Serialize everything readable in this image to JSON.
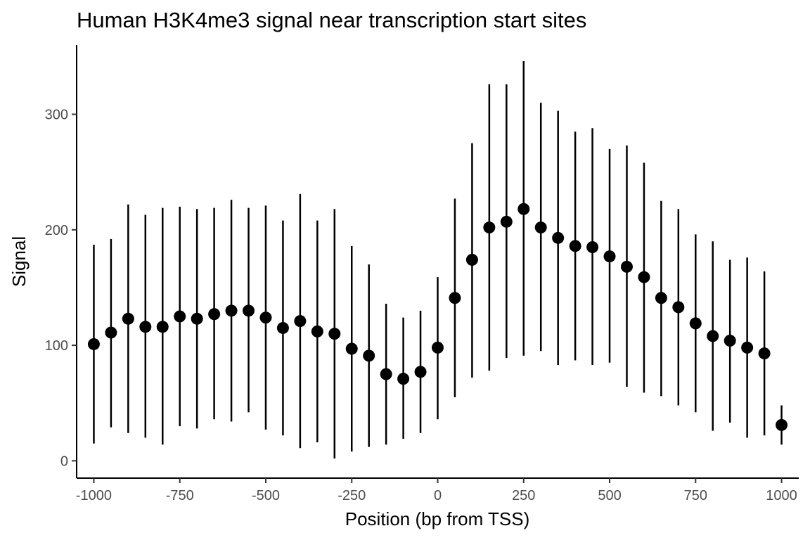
{
  "chart_data": {
    "type": "scatter",
    "title": "Human H3K4me3 signal near transcription start sites",
    "xlabel": "Position (bp from TSS)",
    "ylabel": "Signal",
    "xlim": [
      -1050,
      1050
    ],
    "ylim": [
      -15,
      360
    ],
    "xticks": [
      -1000,
      -750,
      -500,
      -250,
      0,
      250,
      500,
      750,
      1000
    ],
    "xtick_labels": [
      "-1000",
      "-750",
      "-500",
      "-250",
      "0",
      "250",
      "500",
      "750",
      "1000"
    ],
    "yticks": [
      0,
      100,
      200,
      300
    ],
    "ytick_labels": [
      "0",
      "100",
      "200",
      "300"
    ],
    "grid": false,
    "legend": "none",
    "marker_color": "#000000",
    "error_bars": true,
    "points": [
      {
        "x": -1000,
        "y": 101,
        "ymin": 15,
        "ymax": 187
      },
      {
        "x": -950,
        "y": 111,
        "ymin": 29,
        "ymax": 192
      },
      {
        "x": -900,
        "y": 123,
        "ymin": 24,
        "ymax": 222
      },
      {
        "x": -850,
        "y": 116,
        "ymin": 20,
        "ymax": 213
      },
      {
        "x": -800,
        "y": 116,
        "ymin": 14,
        "ymax": 219
      },
      {
        "x": -750,
        "y": 125,
        "ymin": 30,
        "ymax": 220
      },
      {
        "x": -700,
        "y": 123,
        "ymin": 28,
        "ymax": 218
      },
      {
        "x": -650,
        "y": 127,
        "ymin": 36,
        "ymax": 219
      },
      {
        "x": -600,
        "y": 130,
        "ymin": 34,
        "ymax": 226
      },
      {
        "x": -550,
        "y": 130,
        "ymin": 42,
        "ymax": 219
      },
      {
        "x": -500,
        "y": 124,
        "ymin": 27,
        "ymax": 221
      },
      {
        "x": -450,
        "y": 115,
        "ymin": 22,
        "ymax": 208
      },
      {
        "x": -400,
        "y": 121,
        "ymin": 11,
        "ymax": 231
      },
      {
        "x": -350,
        "y": 112,
        "ymin": 16,
        "ymax": 208
      },
      {
        "x": -300,
        "y": 110,
        "ymin": 2,
        "ymax": 218
      },
      {
        "x": -250,
        "y": 97,
        "ymin": 8,
        "ymax": 186
      },
      {
        "x": -200,
        "y": 91,
        "ymin": 12,
        "ymax": 170
      },
      {
        "x": -150,
        "y": 75,
        "ymin": 14,
        "ymax": 136
      },
      {
        "x": -100,
        "y": 71,
        "ymin": 19,
        "ymax": 124
      },
      {
        "x": -50,
        "y": 77,
        "ymin": 24,
        "ymax": 130
      },
      {
        "x": 0,
        "y": 98,
        "ymin": 36,
        "ymax": 159
      },
      {
        "x": 50,
        "y": 141,
        "ymin": 55,
        "ymax": 227
      },
      {
        "x": 100,
        "y": 174,
        "ymin": 72,
        "ymax": 275
      },
      {
        "x": 150,
        "y": 202,
        "ymin": 78,
        "ymax": 326
      },
      {
        "x": 200,
        "y": 207,
        "ymin": 89,
        "ymax": 326
      },
      {
        "x": 250,
        "y": 218,
        "ymin": 91,
        "ymax": 346
      },
      {
        "x": 300,
        "y": 202,
        "ymin": 95,
        "ymax": 310
      },
      {
        "x": 350,
        "y": 193,
        "ymin": 83,
        "ymax": 303
      },
      {
        "x": 400,
        "y": 186,
        "ymin": 87,
        "ymax": 285
      },
      {
        "x": 450,
        "y": 185,
        "ymin": 83,
        "ymax": 288
      },
      {
        "x": 500,
        "y": 177,
        "ymin": 85,
        "ymax": 270
      },
      {
        "x": 550,
        "y": 168,
        "ymin": 64,
        "ymax": 273
      },
      {
        "x": 600,
        "y": 159,
        "ymin": 59,
        "ymax": 258
      },
      {
        "x": 650,
        "y": 141,
        "ymin": 56,
        "ymax": 225
      },
      {
        "x": 700,
        "y": 133,
        "ymin": 48,
        "ymax": 218
      },
      {
        "x": 750,
        "y": 119,
        "ymin": 42,
        "ymax": 196
      },
      {
        "x": 800,
        "y": 108,
        "ymin": 26,
        "ymax": 190
      },
      {
        "x": 850,
        "y": 104,
        "ymin": 33,
        "ymax": 174
      },
      {
        "x": 900,
        "y": 98,
        "ymin": 20,
        "ymax": 176
      },
      {
        "x": 950,
        "y": 93,
        "ymin": 22,
        "ymax": 164
      },
      {
        "x": 1000,
        "y": 31,
        "ymin": 14,
        "ymax": 48
      }
    ]
  }
}
